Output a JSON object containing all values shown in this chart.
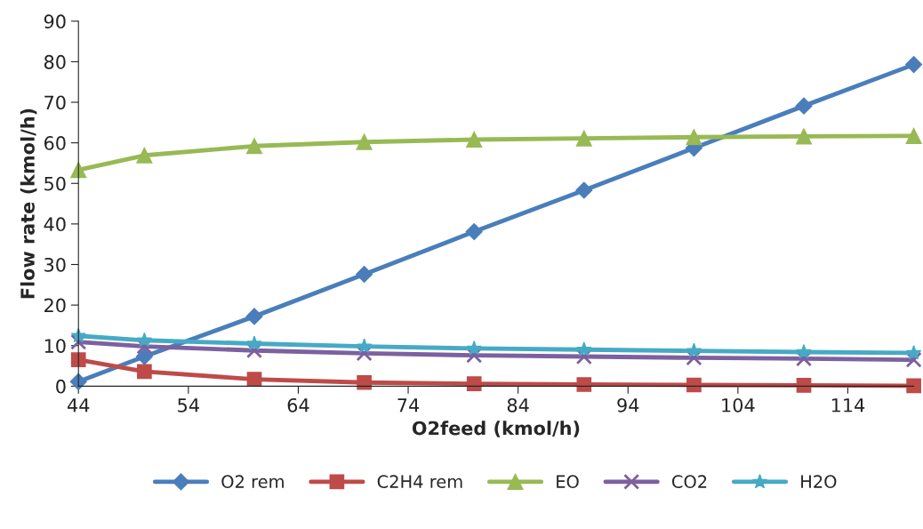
{
  "chart_data": {
    "type": "line",
    "xlabel": "O2feed (kmol/h)",
    "ylabel": "Flow rate (kmol/h)",
    "x": [
      44,
      50,
      60,
      70,
      80,
      90,
      100,
      110,
      120
    ],
    "series": [
      {
        "name": "O2 rem",
        "color": "#4a7ebb",
        "marker": "diamond",
        "values": [
          1.1,
          7.3,
          17.2,
          27.6,
          38.1,
          48.3,
          58.7,
          69.1,
          79.3
        ]
      },
      {
        "name": "C2H4 rem",
        "color": "#be4b48",
        "marker": "square",
        "values": [
          6.5,
          3.6,
          1.7,
          0.9,
          0.6,
          0.4,
          0.3,
          0.2,
          0.1
        ]
      },
      {
        "name": "EO",
        "color": "#98b954",
        "marker": "triangle",
        "values": [
          53.3,
          56.9,
          59.2,
          60.2,
          60.8,
          61.1,
          61.4,
          61.6,
          61.7
        ]
      },
      {
        "name": "CO2",
        "color": "#7d60a0",
        "marker": "cross",
        "values": [
          10.9,
          9.8,
          8.8,
          8.1,
          7.6,
          7.3,
          7.0,
          6.8,
          6.5
        ]
      },
      {
        "name": "H2O",
        "color": "#46aac5",
        "marker": "star",
        "values": [
          12.4,
          11.3,
          10.5,
          9.8,
          9.3,
          9.0,
          8.7,
          8.4,
          8.2
        ]
      }
    ],
    "xlim": [
      44,
      120
    ],
    "xticks": [
      44,
      54,
      64,
      74,
      84,
      94,
      104,
      114
    ],
    "ylim": [
      0,
      90
    ],
    "yticks": [
      0,
      10,
      20,
      30,
      40,
      50,
      60,
      70,
      80,
      90
    ],
    "grid": false,
    "legend": "bottom",
    "line_style": "solid"
  }
}
